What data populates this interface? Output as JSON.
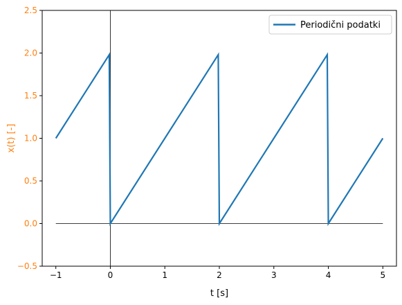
{
  "chart_data": {
    "type": "line",
    "title": "",
    "xlabel": "t [s]",
    "ylabel": "x(t) [-]",
    "xlim": [
      -1.25,
      5.25
    ],
    "ylim": [
      -0.5,
      2.5
    ],
    "xticks": [
      -1,
      0,
      1,
      2,
      3,
      4,
      5
    ],
    "xtick_labels": [
      "−1",
      "0",
      "1",
      "2",
      "3",
      "4",
      "5"
    ],
    "yticks": [
      -0.5,
      0.0,
      0.5,
      1.0,
      1.5,
      2.0,
      2.5
    ],
    "ytick_labels": [
      "−0.5",
      "0.0",
      "0.5",
      "1.0",
      "1.5",
      "2.0",
      "2.5"
    ],
    "grid": false,
    "legend_position": "top-right",
    "colors": {
      "series": "#1f77b4",
      "ylabel": "#ff7f0e",
      "yticks": "#ff7f0e",
      "reference": "#000000"
    },
    "series": [
      {
        "name": "Periodični podatki",
        "x": [
          -1,
          -0.02,
          0.0,
          1.98,
          2.0,
          3.98,
          4.0,
          5.0
        ],
        "y": [
          1.0,
          1.98,
          0.0,
          1.98,
          0.0,
          1.98,
          0.0,
          1.0
        ]
      }
    ],
    "reference_lines": {
      "horizontal": {
        "y": 0,
        "x_from": -1,
        "x_to": 5
      },
      "vertical": {
        "x": 0
      }
    }
  }
}
